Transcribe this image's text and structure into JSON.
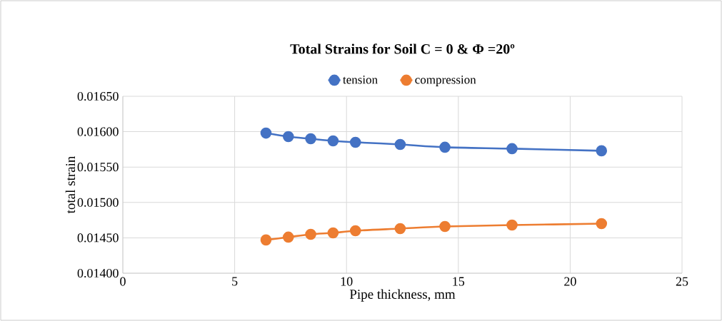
{
  "chart_data": {
    "type": "line",
    "title": "Total Strains for Soil C = 0 & Φ =20º",
    "xlabel": "Pipe thickness, mm",
    "ylabel": "total strain",
    "x": [
      6.4,
      7.4,
      8.4,
      9.4,
      10.4,
      12.4,
      14.4,
      17.4,
      21.4
    ],
    "series": [
      {
        "name": "tension",
        "color": "#4472c4",
        "values": [
          0.01598,
          0.01593,
          0.0159,
          0.01587,
          0.01585,
          0.01582,
          0.01578,
          0.01576,
          0.01573
        ]
      },
      {
        "name": "compression",
        "color": "#ed7d31",
        "values": [
          0.01447,
          0.01451,
          0.01455,
          0.01457,
          0.0146,
          0.01463,
          0.01466,
          0.01468,
          0.0147
        ]
      }
    ],
    "xlim": [
      0,
      25
    ],
    "xticks": [
      0,
      5,
      10,
      15,
      20,
      25
    ],
    "ylim": [
      0.014,
      0.0165
    ],
    "yticks": [
      {
        "value": 0.014,
        "label": "0.01400"
      },
      {
        "value": 0.0145,
        "label": "0.01450"
      },
      {
        "value": 0.015,
        "label": "0.01500"
      },
      {
        "value": 0.0155,
        "label": "0.01550"
      },
      {
        "value": 0.016,
        "label": "0.01600"
      },
      {
        "value": 0.0165,
        "label": "0.01650"
      }
    ],
    "grid": true,
    "legend": "top",
    "marker": "circle",
    "line_style": "solid"
  }
}
